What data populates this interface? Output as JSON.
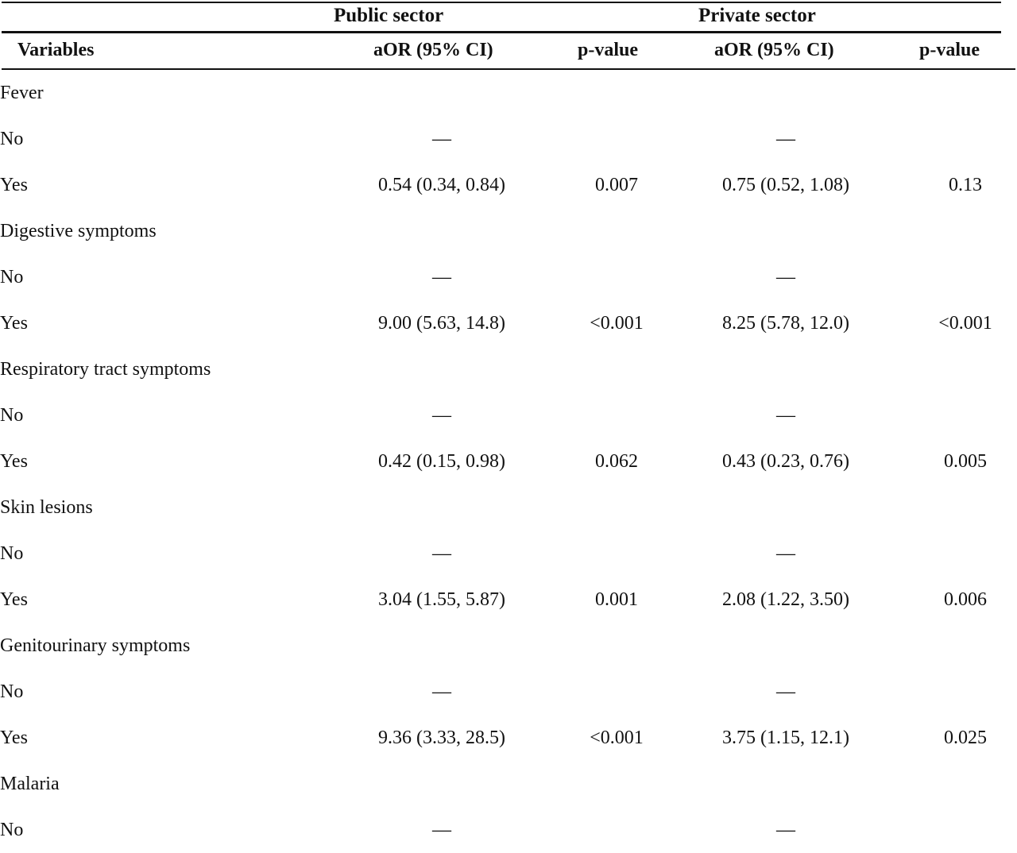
{
  "groups": {
    "public": "Public sector",
    "private": "Private sector"
  },
  "columns": {
    "variables": "Variables",
    "public_aor": "aOR (95% CI)",
    "public_p": "p-value",
    "private_aor": "aOR (95% CI)",
    "private_p": "p-value"
  },
  "rows": [
    {
      "label": "Fever",
      "level": 0,
      "pub_aor": "",
      "pub_p": "",
      "priv_aor": "",
      "priv_p": ""
    },
    {
      "label": "No",
      "level": 1,
      "pub_aor": "—",
      "pub_p": "",
      "priv_aor": "—",
      "priv_p": ""
    },
    {
      "label": "Yes",
      "level": 1,
      "pub_aor": "0.54 (0.34, 0.84)",
      "pub_p": "0.007",
      "priv_aor": "0.75 (0.52, 1.08)",
      "priv_p": "0.13"
    },
    {
      "label": "Digestive symptoms",
      "level": 0,
      "pub_aor": "",
      "pub_p": "",
      "priv_aor": "",
      "priv_p": ""
    },
    {
      "label": "No",
      "level": 1,
      "pub_aor": "—",
      "pub_p": "",
      "priv_aor": "—",
      "priv_p": ""
    },
    {
      "label": "Yes",
      "level": 1,
      "pub_aor": "9.00 (5.63, 14.8)",
      "pub_p": "<0.001",
      "priv_aor": "8.25 (5.78, 12.0)",
      "priv_p": "<0.001"
    },
    {
      "label": "Respiratory tract symptoms",
      "level": 0,
      "pub_aor": "",
      "pub_p": "",
      "priv_aor": "",
      "priv_p": ""
    },
    {
      "label": "No",
      "level": 1,
      "pub_aor": "—",
      "pub_p": "",
      "priv_aor": "—",
      "priv_p": ""
    },
    {
      "label": "Yes",
      "level": 1,
      "pub_aor": "0.42 (0.15, 0.98)",
      "pub_p": "0.062",
      "priv_aor": "0.43 (0.23, 0.76)",
      "priv_p": "0.005"
    },
    {
      "label": "Skin lesions",
      "level": 0,
      "pub_aor": "",
      "pub_p": "",
      "priv_aor": "",
      "priv_p": ""
    },
    {
      "label": "No",
      "level": 1,
      "pub_aor": "—",
      "pub_p": "",
      "priv_aor": "—",
      "priv_p": ""
    },
    {
      "label": "Yes",
      "level": 1,
      "pub_aor": "3.04 (1.55, 5.87)",
      "pub_p": "0.001",
      "priv_aor": "2.08 (1.22, 3.50)",
      "priv_p": "0.006"
    },
    {
      "label": "Genitourinary symptoms",
      "level": 0,
      "pub_aor": "",
      "pub_p": "",
      "priv_aor": "",
      "priv_p": ""
    },
    {
      "label": "No",
      "level": 1,
      "pub_aor": "—",
      "pub_p": "",
      "priv_aor": "—",
      "priv_p": ""
    },
    {
      "label": "Yes",
      "level": 1,
      "pub_aor": "9.36 (3.33, 28.5)",
      "pub_p": "<0.001",
      "priv_aor": "3.75 (1.15, 12.1)",
      "priv_p": "0.025"
    },
    {
      "label": "Malaria",
      "level": 0,
      "pub_aor": "",
      "pub_p": "",
      "priv_aor": "",
      "priv_p": ""
    },
    {
      "label": "No",
      "level": 1,
      "pub_aor": "—",
      "pub_p": "",
      "priv_aor": "—",
      "priv_p": ""
    }
  ]
}
